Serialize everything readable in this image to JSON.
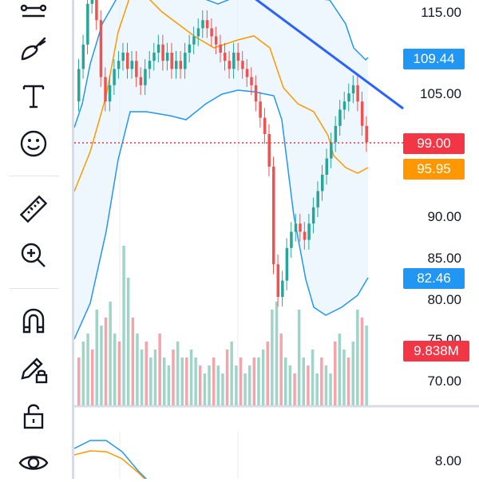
{
  "toolbar": {
    "tools": [
      {
        "name": "trend-line-tool",
        "icon": "trend-line-icon"
      },
      {
        "name": "brush-tool",
        "icon": "brush-icon"
      },
      {
        "name": "text-tool",
        "icon": "text-icon"
      },
      {
        "name": "emoji-tool",
        "icon": "smiley-icon"
      },
      {
        "name": "measure-tool",
        "icon": "ruler-icon"
      },
      {
        "name": "zoom-tool",
        "icon": "zoom-in-icon"
      },
      {
        "name": "magnet-tool",
        "icon": "magnet-icon"
      },
      {
        "name": "lock-drawings-tool",
        "icon": "pencil-lock-icon"
      },
      {
        "name": "lock-tool",
        "icon": "unlock-icon"
      },
      {
        "name": "visibility-tool",
        "icon": "eye-icon"
      }
    ]
  },
  "price_axis": {
    "labels": [
      "115.00",
      "105.00",
      "90.00",
      "85.00",
      "80.00",
      "75.00",
      "70.00",
      "8.00"
    ],
    "badges": {
      "upper_band": "109.44",
      "last_price": "99.00",
      "ma": "95.95",
      "lower_band": "82.46",
      "volume": "9.838M"
    }
  },
  "colors": {
    "up": "#26a69a",
    "down": "#ef5350",
    "band": "#2196f3",
    "band_fill": "#e3f2fd",
    "ma": "#ff9800",
    "trendline": "#2962ff",
    "last_price": "#f23645",
    "volume_up": "#9fd5c9",
    "volume_down": "#f3a5ab"
  }
}
